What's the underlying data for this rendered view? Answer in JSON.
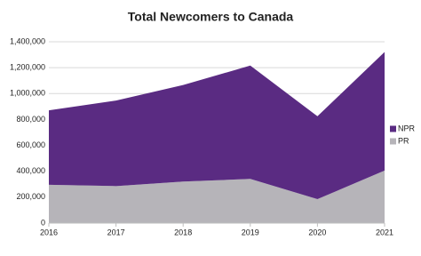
{
  "chart_data": {
    "type": "stacked_area",
    "title": "Total Newcomers to Canada",
    "x": [
      2016,
      2017,
      2018,
      2019,
      2020,
      2021
    ],
    "series": [
      {
        "name": "PR",
        "color": "#b6b4b9",
        "values": [
          296000,
          286000,
          321000,
          341000,
          185000,
          406000
        ]
      },
      {
        "name": "NPR",
        "color": "#5a2b82",
        "values": [
          575000,
          660000,
          745000,
          875000,
          640000,
          915000
        ]
      }
    ],
    "xlim": [
      2016,
      2021
    ],
    "xticks": [
      2016,
      2017,
      2018,
      2019,
      2020,
      2021
    ],
    "ylim": [
      0,
      1400000
    ],
    "yticks": [
      0,
      {
        "value": 200000,
        "label": "200,000"
      },
      {
        "value": 400000,
        "label": "400,000"
      },
      {
        "value": 600000,
        "label": "600,000"
      },
      {
        "value": 800000,
        "label": "800,000"
      },
      {
        "value": 1000000,
        "label": "1,000,000"
      },
      {
        "value": 1200000,
        "label": "1,200,000"
      },
      {
        "value": 1400000,
        "label": "1,400,000"
      }
    ],
    "grid": true,
    "legend": "right"
  }
}
